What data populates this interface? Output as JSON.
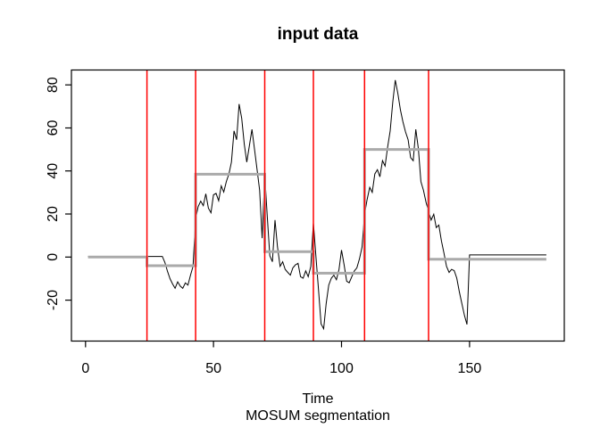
{
  "window": {
    "background": "#FFFFFF"
  },
  "chart_data": {
    "type": "line",
    "title": "input data",
    "xlabel": "Time",
    "sublabel": "MOSUM segmentation",
    "x_ticks": [
      0,
      50,
      100,
      150
    ],
    "y_ticks": [
      -20,
      0,
      20,
      40,
      60,
      80
    ],
    "xlim": [
      -5.5,
      187
    ],
    "ylim": [
      -39,
      86.9
    ],
    "grid": false,
    "legend": "none",
    "box_color": "#000000",
    "series": [
      {
        "name": "input-data",
        "color": "#000000",
        "width": 1,
        "x_start": 1,
        "values": [
          0.3,
          0.3,
          0.3,
          0.3,
          0.3,
          0.3,
          0.3,
          0.3,
          0.3,
          0.3,
          0.3,
          0.3,
          0.3,
          0.3,
          0.3,
          0.3,
          0.3,
          0.3,
          0.3,
          0.3,
          0.3,
          0.3,
          0.3,
          0.3,
          0.3,
          0.3,
          0.3,
          0.3,
          0.3,
          0.3,
          -2.5,
          -6.5,
          -10,
          -12.5,
          -14.5,
          -11.5,
          -13.5,
          -14.5,
          -12,
          -13,
          -8.5,
          -4.3,
          17.6,
          23.4,
          26,
          23.9,
          29.4,
          22.7,
          20.6,
          28.9,
          29.6,
          26.2,
          33.1,
          30.2,
          35.1,
          38.6,
          44.1,
          58.6,
          54.5,
          71.1,
          64.5,
          52.4,
          44.1,
          51.7,
          59.3,
          50.3,
          40.7,
          31,
          8.8,
          38.2,
          18.5,
          0.6,
          -2.2,
          17.2,
          4.7,
          -4.3,
          -2.2,
          -5.7,
          -7.1,
          -8.4,
          -5,
          -3.6,
          -2.9,
          -9.1,
          -9.8,
          -6.4,
          -9.1,
          -4.3,
          15.8,
          0.5,
          -15,
          -31,
          -33.3,
          -21.6,
          -13,
          -9.8,
          -8.4,
          -10.5,
          -5.7,
          3.3,
          -3.6,
          -11.2,
          -11.9,
          -9.1,
          -6.4,
          -5,
          -0.8,
          4.7,
          19.9,
          26.8,
          32.4,
          30.1,
          38.6,
          40.6,
          37.3,
          44.8,
          42.3,
          51,
          58.6,
          72,
          82.2,
          76,
          68.3,
          62.8,
          58.1,
          54.5,
          46.2,
          44.8,
          59.3,
          50.3,
          35.1,
          31,
          25.4,
          21.3,
          17.2,
          19.9,
          13.7,
          14.9,
          7.5,
          1.9,
          -4.3,
          -7.1,
          -5.7,
          -6.3,
          -9.8,
          -16,
          -21.6,
          -27.1,
          -31.3,
          1,
          1,
          1,
          1,
          1,
          1,
          1,
          1,
          1,
          1,
          1,
          1,
          1,
          1,
          1,
          1,
          1,
          1,
          1,
          1,
          1,
          1,
          1,
          1,
          1,
          1,
          1,
          1,
          1,
          1,
          1
        ]
      }
    ],
    "segment_means": {
      "name": "mosum-segment-means",
      "color": "#AAAAAA",
      "width": 3,
      "breaks": [
        1,
        24,
        43,
        70,
        89,
        109,
        134,
        180
      ],
      "levels": [
        0,
        -4,
        38.5,
        2.5,
        -7.5,
        50,
        -1
      ]
    },
    "changepoints": {
      "name": "estimated-changepoints",
      "color": "#FF0000",
      "width": 1.5,
      "t": [
        24,
        43,
        70,
        89,
        109,
        134
      ]
    }
  }
}
